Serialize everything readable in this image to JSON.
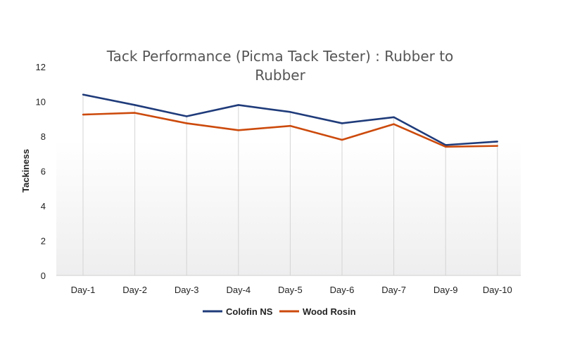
{
  "chart_data": {
    "type": "line",
    "title_lines": [
      "Tack Performance (Picma Tack Tester) : Rubber to",
      "Rubber"
    ],
    "ylabel": "Tackiness",
    "xlabel": "",
    "categories": [
      "Day-1",
      "Day-2",
      "Day-3",
      "Day-4",
      "Day-5",
      "Day-6",
      "Day-7",
      "Day-9",
      "Day-10"
    ],
    "ylim": [
      0,
      12
    ],
    "yticks": [
      "0",
      "2",
      "4",
      "6",
      "8",
      "10",
      "12"
    ],
    "grid": "vertical",
    "legend_position": "bottom",
    "series": [
      {
        "name": "Colofin NS",
        "color": "#1f3b7a",
        "values": [
          10.4,
          9.8,
          9.15,
          9.8,
          9.4,
          8.75,
          9.1,
          7.5,
          7.7
        ]
      },
      {
        "name": "Wood Rosin",
        "color": "#cc4a0c",
        "values": [
          9.25,
          9.35,
          8.75,
          8.35,
          8.6,
          7.8,
          8.7,
          7.4,
          7.45
        ]
      }
    ]
  }
}
